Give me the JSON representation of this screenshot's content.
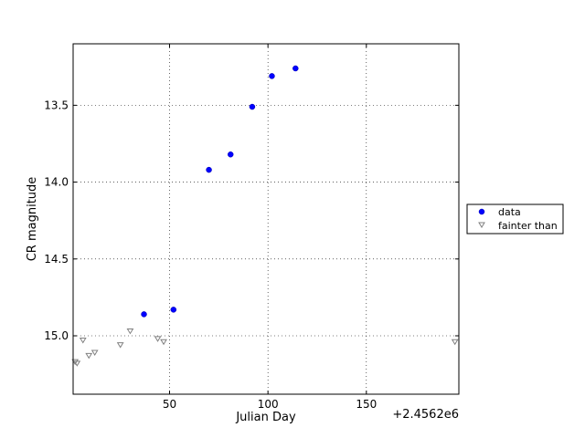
{
  "chart_data": {
    "type": "scatter",
    "title": "",
    "xlabel": "Julian Day",
    "ylabel": "CR magnitude",
    "x_offset_label": "+2.4562e6",
    "xlim": [
      1,
      197
    ],
    "ylim": [
      15.38,
      13.1
    ],
    "y_inverted": true,
    "grid": true,
    "legend_position": "right",
    "x_ticks": [
      50,
      100,
      150
    ],
    "x_tick_labels": [
      "50",
      "100",
      "150"
    ],
    "y_ticks": [
      13.5,
      14.0,
      14.5,
      15.0
    ],
    "y_tick_labels": [
      "13.5",
      "14.0",
      "14.5",
      "15.0"
    ],
    "series": [
      {
        "name": "data",
        "marker": "circle",
        "color": "#0000ff",
        "points": [
          {
            "x": 37,
            "y": 14.86
          },
          {
            "x": 52,
            "y": 14.83
          },
          {
            "x": 70,
            "y": 13.92
          },
          {
            "x": 81,
            "y": 13.82
          },
          {
            "x": 92,
            "y": 13.51
          },
          {
            "x": 102,
            "y": 13.31
          },
          {
            "x": 114,
            "y": 13.26
          }
        ]
      },
      {
        "name": "fainter than",
        "marker": "triangle-down",
        "color": "#808080",
        "points": [
          {
            "x": 2,
            "y": 15.17
          },
          {
            "x": 3,
            "y": 15.18
          },
          {
            "x": 6,
            "y": 15.03
          },
          {
            "x": 9,
            "y": 15.13
          },
          {
            "x": 12,
            "y": 15.11
          },
          {
            "x": 25,
            "y": 15.06
          },
          {
            "x": 30,
            "y": 14.97
          },
          {
            "x": 44,
            "y": 15.02
          },
          {
            "x": 47,
            "y": 15.04
          },
          {
            "x": 195,
            "y": 15.04
          }
        ]
      }
    ]
  }
}
